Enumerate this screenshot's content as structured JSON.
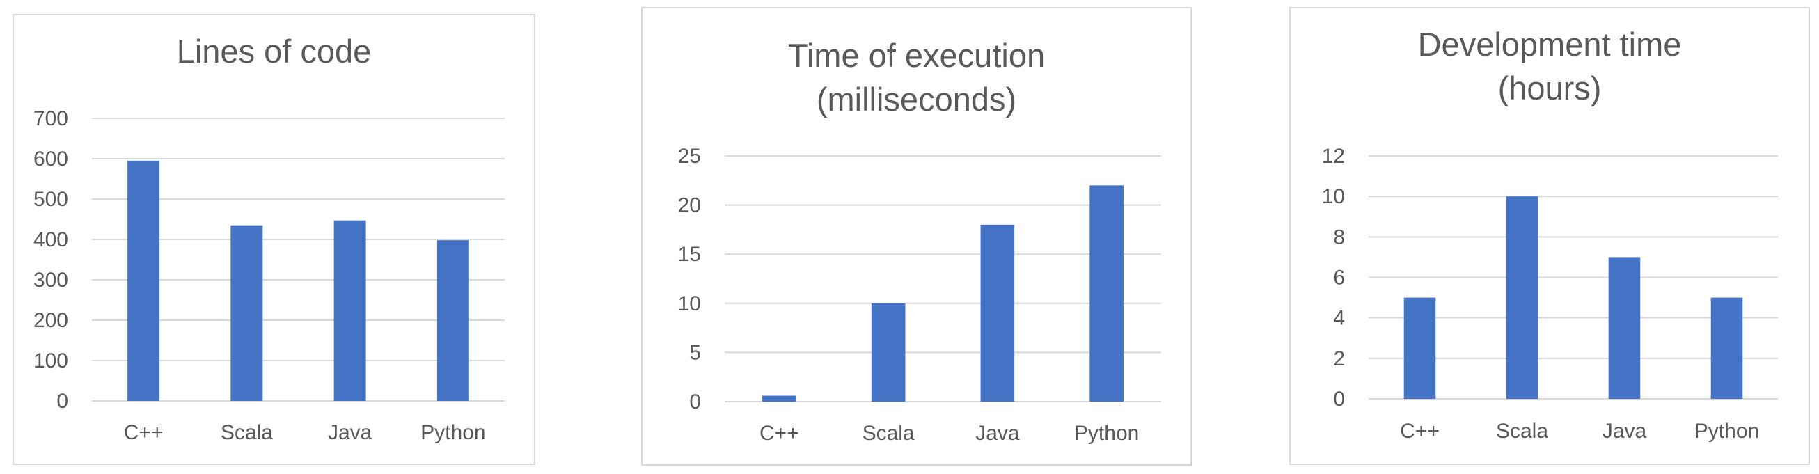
{
  "chart_data": [
    {
      "type": "bar",
      "title_lines": [
        "Lines of code"
      ],
      "categories": [
        "C++",
        "Scala",
        "Java",
        "Python"
      ],
      "values": [
        595,
        435,
        447,
        398
      ],
      "ylim": [
        0,
        700
      ],
      "yticks": [
        "0",
        "100",
        "200",
        "300",
        "400",
        "500",
        "600",
        "700"
      ],
      "grid": true,
      "bar_color": "#4472c4"
    },
    {
      "type": "bar",
      "title_lines": [
        "Time of execution",
        "(milliseconds)"
      ],
      "categories": [
        "C++",
        "Scala",
        "Java",
        "Python"
      ],
      "values": [
        0.6,
        10,
        18,
        22
      ],
      "ylim": [
        0,
        25
      ],
      "yticks": [
        "0",
        "5",
        "10",
        "15",
        "20",
        "25"
      ],
      "grid": true,
      "bar_color": "#4472c4"
    },
    {
      "type": "bar",
      "title_lines": [
        "Development time",
        "(hours)"
      ],
      "categories": [
        "C++",
        "Scala",
        "Java",
        "Python"
      ],
      "values": [
        5,
        10,
        7,
        5
      ],
      "ylim": [
        0,
        12
      ],
      "yticks": [
        "0",
        "2",
        "4",
        "6",
        "8",
        "10",
        "12"
      ],
      "grid": true,
      "bar_color": "#4472c4"
    }
  ]
}
